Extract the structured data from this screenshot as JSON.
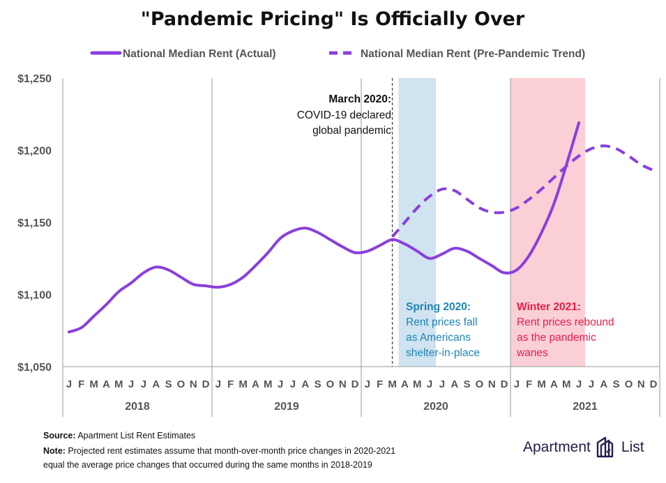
{
  "chart_data": {
    "type": "line",
    "title": "\"Pandemic Pricing\" Is Officially Over",
    "ylim": [
      1050,
      1250
    ],
    "y_ticks": [
      "$1,050",
      "$1,100",
      "$1,150",
      "$1,200",
      "$1,250"
    ],
    "y_tick_values": [
      1050,
      1100,
      1150,
      1200,
      1250
    ],
    "months": [
      "J",
      "F",
      "M",
      "A",
      "M",
      "J",
      "J",
      "A",
      "S",
      "O",
      "N",
      "D"
    ],
    "years": [
      "2018",
      "2019",
      "2020",
      "2021"
    ],
    "legend_position": "top",
    "grid": "vertical lines at year boundaries, horizontal baseline",
    "series": [
      {
        "name": "National Median Rent (Actual)",
        "style": "solid",
        "color": "#8a3fdc",
        "x": [
          "2018-01",
          "2018-02",
          "2018-03",
          "2018-04",
          "2018-05",
          "2018-06",
          "2018-07",
          "2018-08",
          "2018-09",
          "2018-10",
          "2018-11",
          "2018-12",
          "2019-01",
          "2019-02",
          "2019-03",
          "2019-04",
          "2019-05",
          "2019-06",
          "2019-07",
          "2019-08",
          "2019-09",
          "2019-10",
          "2019-11",
          "2019-12",
          "2020-01",
          "2020-02",
          "2020-03",
          "2020-04",
          "2020-05",
          "2020-06",
          "2020-07",
          "2020-08",
          "2020-09",
          "2020-10",
          "2020-11",
          "2020-12",
          "2021-01",
          "2021-02",
          "2021-03",
          "2021-04",
          "2021-05",
          "2021-06"
        ],
        "values": [
          1074,
          1077,
          1085,
          1093,
          1102,
          1108,
          1115,
          1119,
          1117,
          1112,
          1107,
          1106,
          1105,
          1107,
          1112,
          1120,
          1129,
          1139,
          1144,
          1146,
          1143,
          1138,
          1133,
          1129,
          1130,
          1134,
          1138,
          1135,
          1130,
          1125,
          1128,
          1132,
          1130,
          1125,
          1120,
          1115,
          1117,
          1127,
          1143,
          1163,
          1190,
          1219
        ]
      },
      {
        "name": "National Median Rent (Pre-Pandemic Trend)",
        "style": "dashed",
        "color": "#8a3fdc",
        "x": [
          "2020-03",
          "2020-04",
          "2020-05",
          "2020-06",
          "2020-07",
          "2020-08",
          "2020-09",
          "2020-10",
          "2020-11",
          "2020-12",
          "2021-01",
          "2021-02",
          "2021-03",
          "2021-04",
          "2021-05",
          "2021-06",
          "2021-07",
          "2021-08",
          "2021-09",
          "2021-10",
          "2021-11",
          "2021-12"
        ],
        "values": [
          1140,
          1150,
          1160,
          1168,
          1173,
          1172,
          1166,
          1160,
          1157,
          1157,
          1160,
          1166,
          1173,
          1181,
          1189,
          1196,
          1201,
          1203,
          1201,
          1196,
          1190,
          1186
        ]
      }
    ],
    "annotations": {
      "march": {
        "title": "March 2020:",
        "lines": [
          "COVID-19 declared",
          "global pandemic"
        ]
      },
      "spring": {
        "title": "Spring 2020:",
        "lines": [
          "Rent prices fall",
          "as Americans",
          "shelter-in-place"
        ],
        "color": "#1f83b5",
        "band_color": "#cfe3f0",
        "band_range": [
          "2020-04",
          "2020-06"
        ]
      },
      "winter": {
        "title": "Winter 2021:",
        "lines": [
          "Rent prices rebound",
          "as the pandemic",
          "wanes"
        ],
        "color": "#ec1c45",
        "band_color": "#fbcfd6",
        "band_range": [
          "2021-01",
          "2021-06"
        ]
      }
    }
  },
  "footer": {
    "source_label": "Source:",
    "source_text": " Apartment List Rent Estimates",
    "note_label": "Note:",
    "note_line1": " Projected rent estimates assume that month-over-month price changes in 2020-2021",
    "note_line2": "equal the average price changes that occurred during the same months in 2018-2019"
  },
  "logo": {
    "text_left": "Apartment",
    "text_right": "List",
    "icon": "building-mark-icon",
    "color": "#231d4f"
  }
}
